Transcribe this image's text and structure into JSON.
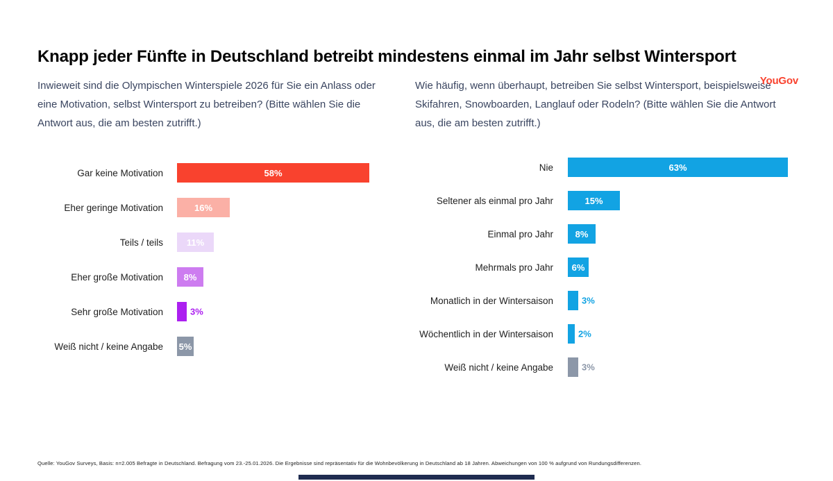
{
  "brand": {
    "logo_text": "YouGov",
    "logo_color": "#f9422e"
  },
  "title": "Knapp jeder Fünfte in Deutschland betreibt mindestens einmal im Jahr selbst Wintersport",
  "footer": "Quelle: YouGov Surveys, Basis: n=2.005 Befragte in Deutschland. Befragung vom 23.-25.01.2026. Die Ergebnisse sind repräsentativ für die Wohnbevölkerung in Deutschland ab 18 Jahren. Abweichungen von 100 % aufgrund von Rundungsdifferenzen.",
  "colors": {
    "red": "#f9422e",
    "salmon": "#fbb0a6",
    "lavender": "#ebd8f9",
    "purple": "#cd7cf0",
    "violet": "#ac20f0",
    "gray": "#8c97a8",
    "blue": "#12a3e3",
    "navy_bottom_bar": "#1f2c50",
    "question_text": "#3a4560"
  },
  "chart_data": [
    {
      "type": "bar",
      "orientation": "horizontal",
      "question": "Inwieweit sind die Olympischen Winterspiele 2026 für Sie ein Anlass oder eine Motivation, selbst Wintersport zu betreiben? (Bitte wählen Sie die Antwort aus, die am besten zutrifft.)",
      "categories": [
        "Gar keine Motivation",
        "Eher geringe Motivation",
        "Teils / teils",
        "Eher große Motivation",
        "Sehr große Motivation",
        "Weiß nicht / keine Angabe"
      ],
      "values": [
        58,
        16,
        11,
        8,
        3,
        5
      ],
      "value_suffix": "%",
      "xlim": [
        0,
        63
      ],
      "grid": false,
      "legend": "none",
      "bars": [
        {
          "label": "Gar keine Motivation",
          "value": 58,
          "display": "58%",
          "color": "#f9422e",
          "label_position": "inside",
          "label_color": "#ffffff"
        },
        {
          "label": "Eher geringe Motivation",
          "value": 16,
          "display": "16%",
          "color": "#fbb0a6",
          "label_position": "inside",
          "label_color": "#ffffff"
        },
        {
          "label": "Teils / teils",
          "value": 11,
          "display": "11%",
          "color": "#ebd8f9",
          "label_position": "inside",
          "label_color": "#ffffff"
        },
        {
          "label": "Eher große Motivation",
          "value": 8,
          "display": "8%",
          "color": "#cd7cf0",
          "label_position": "inside",
          "label_color": "#ffffff"
        },
        {
          "label": "Sehr große Motivation",
          "value": 3,
          "display": "3%",
          "color": "#ac20f0",
          "label_position": "outside",
          "label_color": "#ac20f0"
        },
        {
          "label": "Weiß nicht / keine Angabe",
          "value": 5,
          "display": "5%",
          "color": "#8c97a8",
          "label_position": "inside",
          "label_color": "#ffffff"
        }
      ]
    },
    {
      "type": "bar",
      "orientation": "horizontal",
      "question": "Wie häufig, wenn überhaupt, betreiben Sie selbst Wintersport, beispielsweise Skifahren, Snowboarden, Langlauf oder Rodeln? (Bitte wählen Sie die Antwort aus, die am besten zutrifft.)",
      "categories": [
        "Nie",
        "Seltener als einmal pro Jahr",
        "Einmal pro Jahr",
        "Mehrmals pro Jahr",
        "Monatlich in der Wintersaison",
        "Wöchentlich in der Wintersaison",
        "Weiß nicht / keine Angabe"
      ],
      "values": [
        63,
        15,
        8,
        6,
        3,
        2,
        3
      ],
      "value_suffix": "%",
      "xlim": [
        0,
        63
      ],
      "grid": false,
      "legend": "none",
      "bars": [
        {
          "label": "Nie",
          "value": 63,
          "display": "63%",
          "color": "#12a3e3",
          "label_position": "inside",
          "label_color": "#ffffff"
        },
        {
          "label": "Seltener als einmal pro Jahr",
          "value": 15,
          "display": "15%",
          "color": "#12a3e3",
          "label_position": "inside",
          "label_color": "#ffffff"
        },
        {
          "label": "Einmal pro Jahr",
          "value": 8,
          "display": "8%",
          "color": "#12a3e3",
          "label_position": "inside",
          "label_color": "#ffffff"
        },
        {
          "label": "Mehrmals pro Jahr",
          "value": 6,
          "display": "6%",
          "color": "#12a3e3",
          "label_position": "inside",
          "label_color": "#ffffff"
        },
        {
          "label": "Monatlich in der Wintersaison",
          "value": 3,
          "display": "3%",
          "color": "#12a3e3",
          "label_position": "outside",
          "label_color": "#12a3e3"
        },
        {
          "label": "Wöchentlich in der Wintersaison",
          "value": 2,
          "display": "2%",
          "color": "#12a3e3",
          "label_position": "outside",
          "label_color": "#12a3e3"
        },
        {
          "label": "Weiß nicht / keine Angabe",
          "value": 3,
          "display": "3%",
          "color": "#8c97a8",
          "label_position": "outside",
          "label_color": "#8c97a8"
        }
      ]
    }
  ]
}
